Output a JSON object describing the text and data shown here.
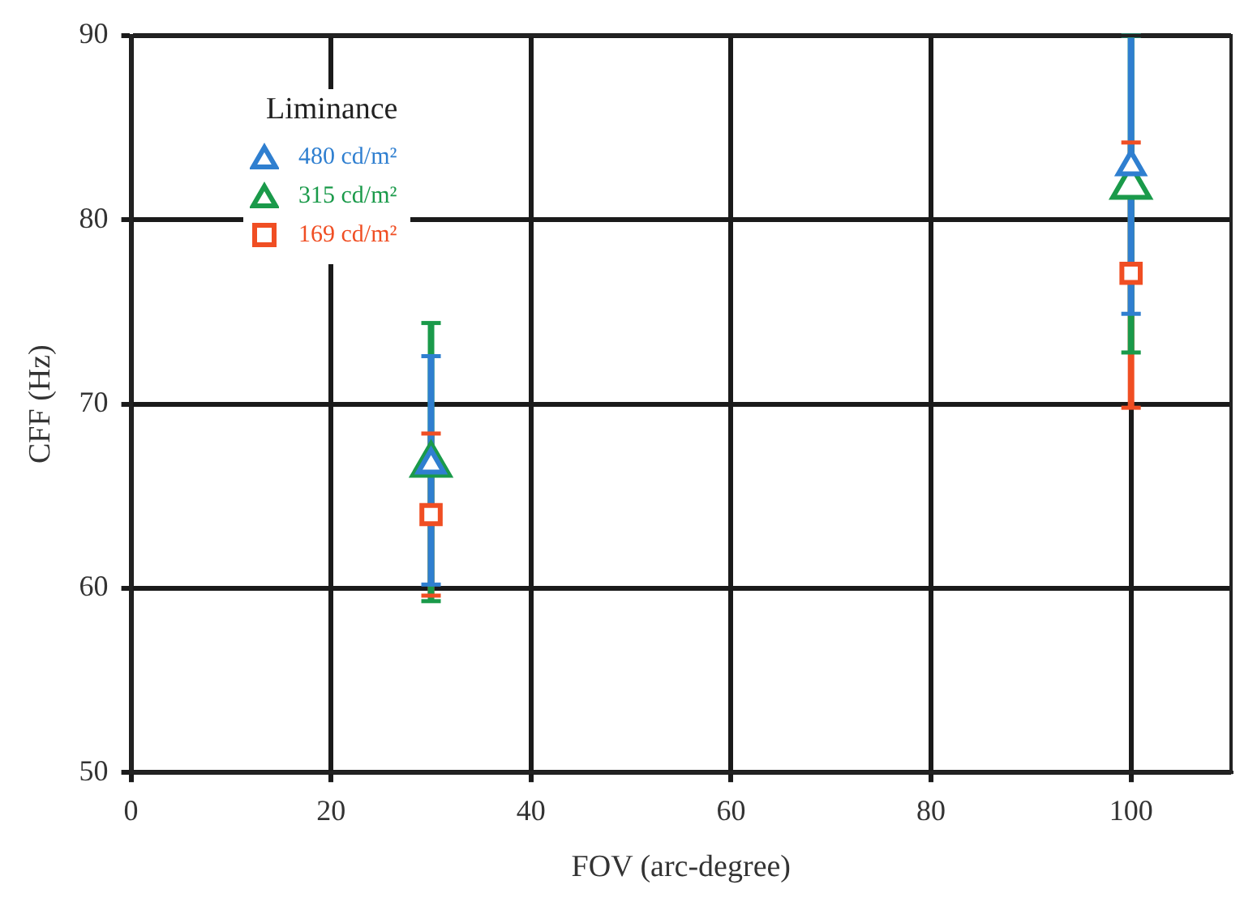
{
  "chart_data": {
    "type": "scatter",
    "xlabel": "FOV (arc-degree)",
    "ylabel": "CFF (Hz)",
    "legend_title": "Liminance",
    "legend": "top left",
    "grid": true,
    "x": [
      30,
      100
    ],
    "xlim": [
      0,
      110
    ],
    "xticks": [
      0,
      20,
      40,
      60,
      80,
      100
    ],
    "ylim": [
      50,
      90
    ],
    "yticks": [
      50,
      60,
      70,
      80,
      90
    ],
    "series": [
      {
        "name": "480 cd/m²",
        "color": "#2f7fd0",
        "marker": "triangle",
        "values": [
          66.7,
          82.9
        ],
        "errors": [
          [
            60.2,
            72.6
          ],
          [
            74.9,
            90
          ]
        ]
      },
      {
        "name": "315 cd/m²",
        "color": "#1a9a4a",
        "marker": "triangle",
        "values": [
          66.7,
          81.8
        ],
        "errors": [
          [
            59.3,
            74.4
          ],
          [
            72.8,
            90
          ]
        ]
      },
      {
        "name": "169 cd/m²",
        "color": "#f04e23",
        "marker": "square",
        "values": [
          64.0,
          77.1
        ],
        "errors": [
          [
            59.6,
            68.4
          ],
          [
            69.8,
            84.2
          ]
        ]
      }
    ]
  }
}
